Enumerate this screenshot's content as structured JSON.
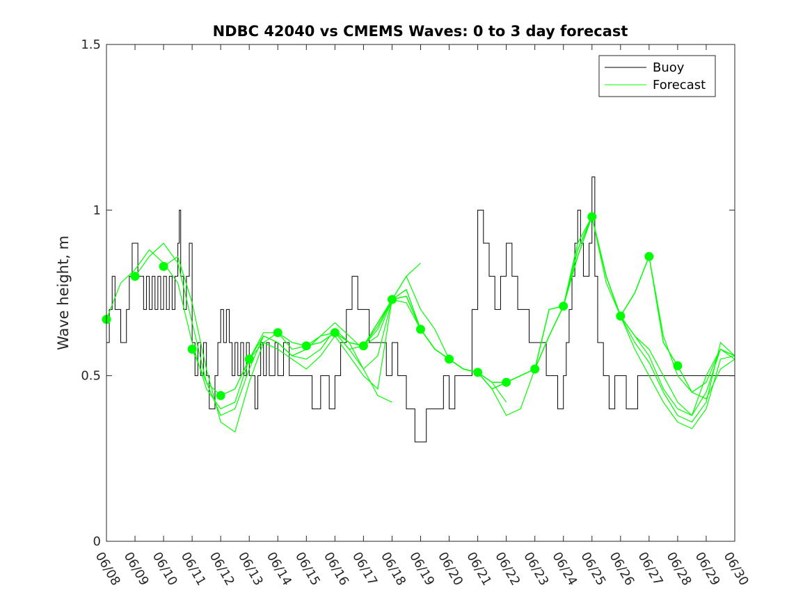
{
  "chart_data": {
    "type": "line",
    "title": "NDBC 42040 vs CMEMS Waves: 0 to 3 day forecast",
    "xlabel": "",
    "ylabel": "Wave height, m",
    "xlim": [
      "06/08",
      "06/30"
    ],
    "ylim": [
      0,
      1.5
    ],
    "x_ticks": [
      "06/08",
      "06/09",
      "06/10",
      "06/11",
      "06/12",
      "06/13",
      "06/14",
      "06/15",
      "06/16",
      "06/17",
      "06/18",
      "06/19",
      "06/20",
      "06/21",
      "06/22",
      "06/23",
      "06/24",
      "06/25",
      "06/26",
      "06/27",
      "06/28",
      "06/29",
      "06/30"
    ],
    "y_ticks": [
      {
        "value": 0,
        "label": "0"
      },
      {
        "value": 0.5,
        "label": "0.5"
      },
      {
        "value": 1,
        "label": "1"
      },
      {
        "value": 1.5,
        "label": "1.5"
      }
    ],
    "grid": false,
    "legend": {
      "position": "top-right",
      "entries": [
        {
          "label": "Buoy",
          "color": "#000000"
        },
        {
          "label": "Forecast",
          "color": "#00ff00"
        }
      ]
    },
    "series": [
      {
        "name": "Buoy",
        "color": "#000000",
        "note_x_unit": "day offset from 06/08",
        "x": [
          0,
          0.1,
          0.2,
          0.3,
          0.4,
          0.5,
          0.6,
          0.7,
          0.8,
          0.9,
          1.0,
          1.1,
          1.2,
          1.3,
          1.4,
          1.5,
          1.6,
          1.7,
          1.8,
          1.9,
          2.0,
          2.1,
          2.2,
          2.3,
          2.4,
          2.5,
          2.55,
          2.6,
          2.7,
          2.8,
          2.9,
          3.0,
          3.1,
          3.2,
          3.3,
          3.4,
          3.5,
          3.6,
          3.7,
          3.8,
          3.9,
          4.0,
          4.1,
          4.2,
          4.3,
          4.4,
          4.5,
          4.6,
          4.7,
          4.8,
          4.9,
          5.0,
          5.1,
          5.2,
          5.3,
          5.4,
          5.5,
          5.6,
          5.7,
          5.8,
          5.9,
          6.0,
          6.2,
          6.4,
          6.5,
          6.6,
          6.8,
          7.0,
          7.2,
          7.4,
          7.5,
          7.6,
          7.8,
          8.0,
          8.2,
          8.4,
          8.5,
          8.6,
          8.8,
          9.0,
          9.2,
          9.4,
          9.6,
          9.8,
          10.0,
          10.2,
          10.4,
          10.5,
          10.6,
          10.8,
          11.0,
          11.2,
          11.4,
          11.6,
          11.8,
          12.0,
          12.2,
          12.4,
          12.6,
          12.8,
          13.0,
          13.2,
          13.4,
          13.6,
          13.8,
          14.0,
          14.2,
          14.4,
          14.6,
          14.8,
          15.0,
          15.2,
          15.4,
          15.6,
          15.8,
          16.0,
          16.1,
          16.2,
          16.3,
          16.4,
          16.5,
          16.6,
          16.7,
          16.8,
          16.9,
          17.0,
          17.1,
          17.2,
          17.4,
          17.6,
          17.8,
          18.0,
          18.2,
          18.4,
          18.6,
          18.8,
          19.0,
          19.2,
          19.4,
          19.6,
          19.8,
          20.0,
          20.2,
          20.4,
          20.6,
          20.8,
          21.0,
          21.2,
          21.4,
          21.6,
          21.8,
          22.0
        ],
        "y": [
          0.6,
          0.7,
          0.8,
          0.7,
          0.7,
          0.6,
          0.6,
          0.7,
          0.8,
          0.9,
          0.9,
          0.8,
          0.8,
          0.7,
          0.8,
          0.7,
          0.8,
          0.7,
          0.8,
          0.7,
          0.8,
          0.7,
          0.8,
          0.7,
          0.8,
          0.9,
          1.0,
          0.8,
          0.7,
          0.8,
          0.9,
          0.6,
          0.5,
          0.6,
          0.5,
          0.6,
          0.5,
          0.4,
          0.4,
          0.5,
          0.6,
          0.7,
          0.6,
          0.7,
          0.6,
          0.5,
          0.6,
          0.5,
          0.6,
          0.5,
          0.6,
          0.5,
          0.5,
          0.4,
          0.5,
          0.6,
          0.5,
          0.6,
          0.5,
          0.5,
          0.6,
          0.5,
          0.6,
          0.5,
          0.5,
          0.5,
          0.5,
          0.5,
          0.4,
          0.4,
          0.5,
          0.5,
          0.4,
          0.5,
          0.6,
          0.7,
          0.7,
          0.8,
          0.7,
          0.7,
          0.6,
          0.6,
          0.6,
          0.5,
          0.6,
          0.5,
          0.5,
          0.4,
          0.4,
          0.3,
          0.3,
          0.4,
          0.4,
          0.4,
          0.5,
          0.4,
          0.5,
          0.5,
          0.5,
          0.7,
          1.0,
          0.9,
          0.8,
          0.7,
          0.8,
          0.9,
          0.8,
          0.7,
          0.7,
          0.6,
          0.6,
          0.6,
          0.5,
          0.5,
          0.4,
          0.5,
          0.6,
          0.7,
          0.8,
          0.9,
          1.0,
          0.9,
          0.8,
          0.8,
          0.9,
          1.1,
          0.8,
          0.6,
          0.5,
          0.4,
          0.5,
          0.5,
          0.4,
          0.4,
          0.5,
          0.5,
          0.5,
          0.5,
          0.5,
          0.5,
          0.5,
          0.5,
          0.5,
          0.5,
          0.5,
          0.5,
          0.5,
          0.5,
          0.5,
          0.5,
          0.5,
          0.5
        ]
      }
    ],
    "forecast_series": {
      "name": "Forecast",
      "color": "#00ff00",
      "runs": [
        {
          "x": [
            0,
            0.5,
            1,
            1.5,
            2,
            2.5,
            3,
            3.5,
            4,
            4.5,
            5,
            5.5,
            6,
            6.5,
            7,
            7.5,
            8,
            8.5,
            9
          ],
          "y": [
            0.67,
            0.78,
            0.82,
            0.88,
            0.84,
            0.78,
            0.6,
            0.46,
            0.4,
            0.42,
            0.55,
            0.62,
            0.6,
            0.56,
            0.58,
            0.62,
            0.66,
            0.62,
            0.58
          ]
        },
        {
          "x": [
            1,
            1.5,
            2,
            2.5,
            3,
            3.5,
            4,
            4.5,
            5,
            5.5,
            6,
            6.5,
            7,
            7.5,
            8,
            8.5,
            9,
            9.5,
            10
          ],
          "y": [
            0.8,
            0.86,
            0.9,
            0.84,
            0.66,
            0.48,
            0.38,
            0.4,
            0.52,
            0.62,
            0.6,
            0.56,
            0.55,
            0.58,
            0.64,
            0.6,
            0.52,
            0.44,
            0.42
          ]
        },
        {
          "x": [
            2,
            2.5,
            3,
            3.5,
            4,
            4.5,
            5,
            5.5,
            6,
            6.5,
            7,
            7.5,
            8,
            8.5,
            9,
            9.5,
            10,
            10.5,
            11
          ],
          "y": [
            0.83,
            0.86,
            0.72,
            0.52,
            0.36,
            0.33,
            0.48,
            0.6,
            0.58,
            0.55,
            0.52,
            0.56,
            0.62,
            0.56,
            0.5,
            0.46,
            0.73,
            0.8,
            0.84
          ]
        },
        {
          "x": [
            3,
            3.5,
            4,
            4.5,
            5,
            5.5,
            6,
            6.5,
            7,
            7.5,
            8,
            8.5,
            9,
            9.5,
            10,
            10.5,
            11,
            11.5,
            12
          ],
          "y": [
            0.58,
            0.48,
            0.44,
            0.46,
            0.55,
            0.62,
            0.6,
            0.56,
            0.58,
            0.62,
            0.63,
            0.58,
            0.52,
            0.56,
            0.73,
            0.8,
            0.7,
            0.64,
            0.55
          ]
        },
        {
          "x": [
            4,
            4.5,
            5,
            5.5,
            6,
            6.5,
            7,
            7.5,
            8,
            8.5,
            9,
            9.5,
            10,
            10.5,
            11,
            11.5,
            12,
            12.5,
            13
          ],
          "y": [
            0.44,
            0.46,
            0.55,
            0.63,
            0.63,
            0.58,
            0.59,
            0.62,
            0.63,
            0.58,
            0.59,
            0.62,
            0.73,
            0.76,
            0.64,
            0.58,
            0.55,
            0.52,
            0.51
          ]
        },
        {
          "x": [
            5,
            5.5,
            6,
            6.5,
            7,
            7.5,
            8,
            8.5,
            9,
            9.5,
            10,
            10.5,
            11,
            11.5,
            12,
            12.5,
            13,
            13.5,
            14
          ],
          "y": [
            0.55,
            0.6,
            0.63,
            0.6,
            0.59,
            0.6,
            0.63,
            0.6,
            0.59,
            0.64,
            0.73,
            0.72,
            0.64,
            0.58,
            0.55,
            0.52,
            0.51,
            0.48,
            0.42
          ]
        },
        {
          "x": [
            6,
            6.5,
            7,
            7.5,
            8,
            8.5,
            9,
            9.5,
            10,
            10.5,
            11,
            11.5,
            12,
            12.5,
            13,
            13.5,
            14,
            14.5,
            15
          ],
          "y": [
            0.63,
            0.6,
            0.59,
            0.6,
            0.63,
            0.6,
            0.59,
            0.65,
            0.73,
            0.74,
            0.64,
            0.58,
            0.55,
            0.52,
            0.51,
            0.48,
            0.48,
            0.5,
            0.52
          ]
        },
        {
          "x": [
            7,
            7.5,
            8,
            8.5,
            9,
            9.5,
            10,
            10.5,
            11,
            11.5,
            12,
            12.5,
            13,
            13.5,
            14,
            14.5,
            15,
            15.5,
            16
          ],
          "y": [
            0.59,
            0.6,
            0.63,
            0.6,
            0.59,
            0.66,
            0.73,
            0.74,
            0.64,
            0.58,
            0.55,
            0.52,
            0.51,
            0.46,
            0.38,
            0.4,
            0.52,
            0.62,
            0.71
          ]
        },
        {
          "x": [
            8,
            8.5,
            9,
            9.5,
            10,
            10.5,
            11,
            11.5,
            12,
            12.5,
            13,
            13.5,
            14,
            14.5,
            15,
            15.5,
            16,
            16.5,
            17
          ],
          "y": [
            0.63,
            0.6,
            0.59,
            0.66,
            0.73,
            0.76,
            0.64,
            0.58,
            0.55,
            0.52,
            0.51,
            0.46,
            0.48,
            0.5,
            0.52,
            0.7,
            0.71,
            0.86,
            0.98
          ]
        },
        {
          "x": [
            9,
            9.5,
            10,
            10.5,
            11,
            11.5,
            12,
            12.5,
            13,
            13.5,
            14,
            14.5,
            15,
            15.5,
            16,
            16.5,
            17,
            17.5,
            18
          ],
          "y": [
            0.59,
            0.66,
            0.73,
            0.74,
            0.64,
            0.58,
            0.55,
            0.52,
            0.51,
            0.48,
            0.48,
            0.5,
            0.52,
            0.62,
            0.71,
            0.88,
            0.98,
            0.8,
            0.68
          ]
        },
        {
          "x": [
            10,
            10.5,
            11,
            11.5,
            12,
            12.5,
            13,
            13.5,
            14,
            14.5,
            15,
            15.5,
            16,
            16.5,
            17,
            17.5,
            18,
            18.5,
            19
          ],
          "y": [
            0.73,
            0.74,
            0.64,
            0.58,
            0.55,
            0.52,
            0.51,
            0.46,
            0.48,
            0.5,
            0.52,
            0.7,
            0.71,
            0.9,
            0.98,
            0.8,
            0.68,
            0.75,
            0.86
          ]
        },
        {
          "x": [
            11,
            11.5,
            12,
            12.5,
            13,
            13.5,
            14,
            14.5,
            15,
            15.5,
            16,
            16.5,
            17,
            17.5,
            18,
            18.5,
            19,
            19.5,
            20
          ],
          "y": [
            0.64,
            0.58,
            0.55,
            0.52,
            0.51,
            0.48,
            0.48,
            0.5,
            0.52,
            0.62,
            0.71,
            0.88,
            0.98,
            0.8,
            0.68,
            0.75,
            0.86,
            0.6,
            0.53
          ]
        },
        {
          "x": [
            12,
            12.5,
            13,
            13.5,
            14,
            14.5,
            15,
            15.5,
            16,
            16.5,
            17,
            17.5,
            18,
            18.5,
            19,
            19.5,
            20,
            20.5,
            21
          ],
          "y": [
            0.55,
            0.52,
            0.51,
            0.46,
            0.48,
            0.5,
            0.52,
            0.7,
            0.71,
            0.86,
            0.98,
            0.8,
            0.68,
            0.75,
            0.86,
            0.6,
            0.53,
            0.45,
            0.48
          ]
        },
        {
          "x": [
            13,
            13.5,
            14,
            14.5,
            15,
            15.5,
            16,
            16.5,
            17,
            17.5,
            18,
            18.5,
            19,
            19.5,
            20,
            20.5,
            21,
            21.5,
            22
          ],
          "y": [
            0.51,
            0.48,
            0.48,
            0.5,
            0.52,
            0.62,
            0.71,
            0.88,
            0.98,
            0.8,
            0.68,
            0.62,
            0.58,
            0.5,
            0.42,
            0.38,
            0.45,
            0.58,
            0.56
          ]
        },
        {
          "x": [
            14,
            14.5,
            15,
            15.5,
            16,
            16.5,
            17,
            17.5,
            18,
            18.5,
            19,
            19.5,
            20,
            20.5,
            21,
            21.5,
            22
          ],
          "y": [
            0.48,
            0.5,
            0.52,
            0.7,
            0.71,
            0.9,
            0.98,
            0.78,
            0.68,
            0.6,
            0.54,
            0.45,
            0.38,
            0.36,
            0.42,
            0.6,
            0.56
          ]
        },
        {
          "x": [
            15,
            15.5,
            16,
            16.5,
            17,
            17.5,
            18,
            18.5,
            19,
            19.5,
            20,
            20.5,
            21,
            21.5,
            22
          ],
          "y": [
            0.52,
            0.62,
            0.71,
            0.86,
            0.98,
            0.8,
            0.68,
            0.58,
            0.5,
            0.42,
            0.36,
            0.34,
            0.4,
            0.55,
            0.56
          ]
        },
        {
          "x": [
            16,
            16.5,
            17,
            17.5,
            18,
            18.5,
            19,
            19.5,
            20,
            20.5,
            21,
            21.5,
            22
          ],
          "y": [
            0.71,
            0.88,
            0.98,
            0.8,
            0.68,
            0.62,
            0.56,
            0.46,
            0.4,
            0.38,
            0.5,
            0.58,
            0.56
          ]
        },
        {
          "x": [
            18,
            18.5,
            19,
            19.5,
            20,
            20.5,
            21,
            21.5,
            22
          ],
          "y": [
            0.68,
            0.75,
            0.86,
            0.62,
            0.5,
            0.45,
            0.48,
            0.58,
            0.55
          ]
        },
        {
          "x": [
            20,
            20.5,
            21,
            21.5,
            22
          ],
          "y": [
            0.53,
            0.45,
            0.43,
            0.52,
            0.55
          ]
        }
      ],
      "markers": {
        "x": [
          0,
          1,
          2,
          3,
          4,
          5,
          6,
          7,
          8,
          9,
          10,
          11,
          12,
          13,
          14,
          15,
          16,
          17,
          18,
          19,
          20
        ],
        "y": [
          0.67,
          0.8,
          0.83,
          0.58,
          0.44,
          0.55,
          0.63,
          0.59,
          0.63,
          0.59,
          0.73,
          0.64,
          0.55,
          0.51,
          0.48,
          0.52,
          0.71,
          0.98,
          0.68,
          0.86,
          0.53
        ]
      }
    }
  }
}
